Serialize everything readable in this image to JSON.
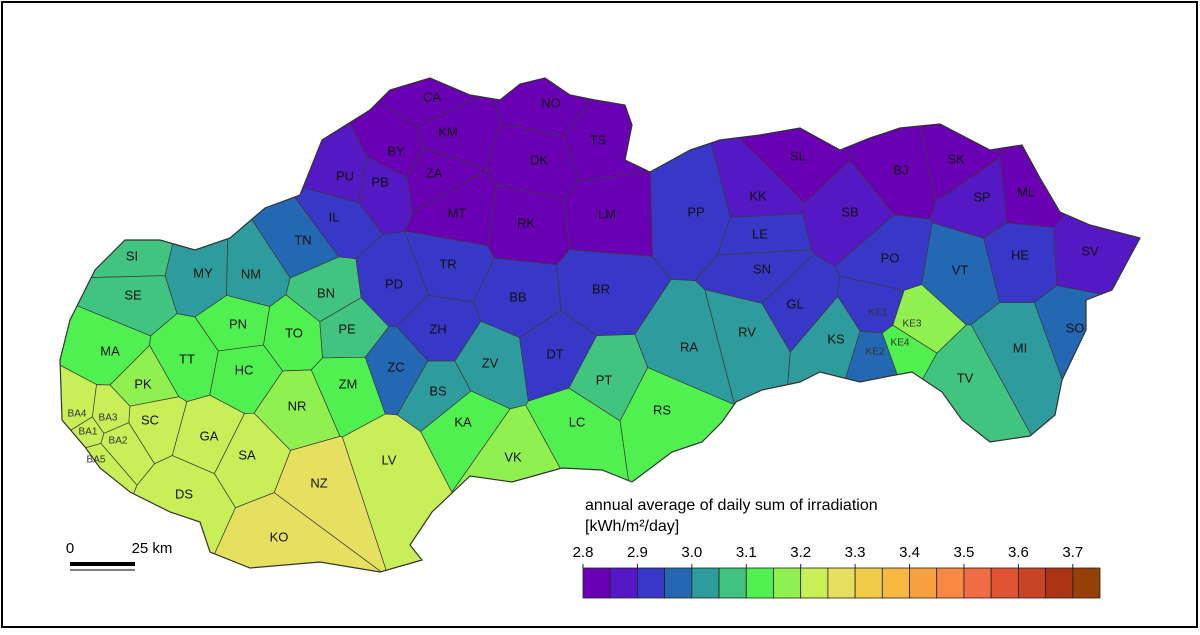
{
  "districts": [
    {
      "label": "CA",
      "value": 2.82
    },
    {
      "label": "NO",
      "value": 2.82
    },
    {
      "label": "TS",
      "value": 2.82
    },
    {
      "label": "KM",
      "value": 2.82
    },
    {
      "label": "BY",
      "value": 2.82
    },
    {
      "label": "DK",
      "value": 2.82
    },
    {
      "label": "ZA",
      "value": 2.82
    },
    {
      "label": "MT",
      "value": 2.82
    },
    {
      "label": "RK",
      "value": 2.82
    },
    {
      "label": "LM",
      "value": 2.82
    },
    {
      "label": "SL",
      "value": 2.82
    },
    {
      "label": "BJ",
      "value": 2.82
    },
    {
      "label": "SK",
      "value": 2.82
    },
    {
      "label": "ML",
      "value": 2.82
    },
    {
      "label": "PB",
      "value": 2.87
    },
    {
      "label": "PU",
      "value": 2.87
    },
    {
      "label": "SP",
      "value": 2.87
    },
    {
      "label": "SB",
      "value": 2.87
    },
    {
      "label": "KK",
      "value": 2.87
    },
    {
      "label": "SV",
      "value": 2.87
    },
    {
      "label": "IL",
      "value": 2.92
    },
    {
      "label": "TR",
      "value": 2.92
    },
    {
      "label": "BB",
      "value": 2.92
    },
    {
      "label": "BR",
      "value": 2.92
    },
    {
      "label": "PP",
      "value": 2.92
    },
    {
      "label": "LE",
      "value": 2.92
    },
    {
      "label": "SN",
      "value": 2.92
    },
    {
      "label": "GL",
      "value": 2.92
    },
    {
      "label": "PO",
      "value": 2.92
    },
    {
      "label": "HE",
      "value": 2.92
    },
    {
      "label": "PD",
      "value": 2.92
    },
    {
      "label": "ZH",
      "value": 2.92
    },
    {
      "label": "DT",
      "value": 2.92
    },
    {
      "label": "KE1",
      "value": 2.92
    },
    {
      "label": "KE2",
      "value": 2.97
    },
    {
      "label": "TN",
      "value": 2.97
    },
    {
      "label": "VT",
      "value": 2.97
    },
    {
      "label": "SO",
      "value": 2.97
    },
    {
      "label": "ZC",
      "value": 2.97
    },
    {
      "label": "BS",
      "value": 3.02
    },
    {
      "label": "MY",
      "value": 3.02
    },
    {
      "label": "NM",
      "value": 3.02
    },
    {
      "label": "ZV",
      "value": 3.02
    },
    {
      "label": "RA",
      "value": 3.02
    },
    {
      "label": "RV",
      "value": 3.02
    },
    {
      "label": "KS",
      "value": 3.02
    },
    {
      "label": "MI",
      "value": 3.02
    },
    {
      "label": "BN",
      "value": 3.07
    },
    {
      "label": "SI",
      "value": 3.07
    },
    {
      "label": "SE",
      "value": 3.07
    },
    {
      "label": "PE",
      "value": 3.07
    },
    {
      "label": "PT",
      "value": 3.07
    },
    {
      "label": "TV",
      "value": 3.07
    },
    {
      "label": "MA",
      "value": 3.12
    },
    {
      "label": "TT",
      "value": 3.12
    },
    {
      "label": "PN",
      "value": 3.12
    },
    {
      "label": "TO",
      "value": 3.12
    },
    {
      "label": "HC",
      "value": 3.12
    },
    {
      "label": "ZM",
      "value": 3.12
    },
    {
      "label": "KA",
      "value": 3.12
    },
    {
      "label": "RS",
      "value": 3.12
    },
    {
      "label": "LC",
      "value": 3.12
    },
    {
      "label": "KE4",
      "value": 3.12
    },
    {
      "label": "KE3",
      "value": 3.17
    },
    {
      "label": "NR",
      "value": 3.17
    },
    {
      "label": "PK",
      "value": 3.17
    },
    {
      "label": "VK",
      "value": 3.17
    },
    {
      "label": "SC",
      "value": 3.22
    },
    {
      "label": "GA",
      "value": 3.22
    },
    {
      "label": "SA",
      "value": 3.22
    },
    {
      "label": "LV",
      "value": 3.22
    },
    {
      "label": "DS",
      "value": 3.22
    },
    {
      "label": "BA4",
      "value": 3.22
    },
    {
      "label": "BA3",
      "value": 3.22
    },
    {
      "label": "BA1",
      "value": 3.22
    },
    {
      "label": "BA2",
      "value": 3.22
    },
    {
      "label": "BA5",
      "value": 3.22
    },
    {
      "label": "NZ",
      "value": 3.27
    },
    {
      "label": "KO",
      "value": 3.27
    }
  ],
  "legend": {
    "title": "annual average of daily sum of irradiation",
    "unit": "[kWh/m²/day]",
    "bins": [
      2.8,
      2.85,
      2.9,
      2.95,
      3.0,
      3.05,
      3.1,
      3.15,
      3.2,
      3.25,
      3.3,
      3.35,
      3.4,
      3.45,
      3.5,
      3.55,
      3.6,
      3.65,
      3.7,
      3.75
    ],
    "colors": [
      "#6a00b4",
      "#5418c4",
      "#3838c8",
      "#2468b4",
      "#2e9c9c",
      "#40c480",
      "#50f050",
      "#90f050",
      "#c8ee58",
      "#e6e060",
      "#f0cc48",
      "#f8b840",
      "#f8a040",
      "#f88844",
      "#f06c44",
      "#e05434",
      "#c84424",
      "#ac3414",
      "#964008"
    ],
    "ticks": [
      2.8,
      2.9,
      {
        "value": 3.0,
        "label": "3.0"
      },
      3.1,
      3.2,
      3.3,
      3.4,
      3.5,
      3.6,
      3.7
    ]
  },
  "scale_bar": {
    "start": "0",
    "end": "25 km"
  }
}
